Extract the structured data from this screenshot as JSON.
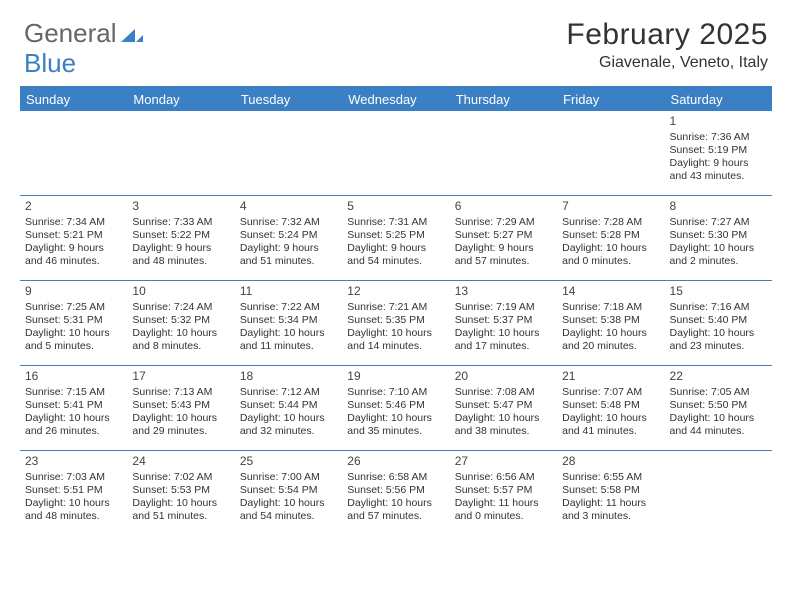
{
  "logo": {
    "text1": "General",
    "text2": "Blue",
    "color1": "#666666",
    "color2": "#3b7fc4"
  },
  "title": "February 2025",
  "location": "Giavenale, Veneto, Italy",
  "theme": {
    "header_bg": "#3b7fc4",
    "header_text": "#ffffff",
    "row_border": "#3b7fc4",
    "body_text": "#333333",
    "page_bg": "#ffffff"
  },
  "days": [
    "Sunday",
    "Monday",
    "Tuesday",
    "Wednesday",
    "Thursday",
    "Friday",
    "Saturday"
  ],
  "weeks": [
    [
      null,
      null,
      null,
      null,
      null,
      null,
      {
        "n": "1",
        "sr": "7:36 AM",
        "ss": "5:19 PM",
        "dl": "9 hours and 43 minutes."
      }
    ],
    [
      {
        "n": "2",
        "sr": "7:34 AM",
        "ss": "5:21 PM",
        "dl": "9 hours and 46 minutes."
      },
      {
        "n": "3",
        "sr": "7:33 AM",
        "ss": "5:22 PM",
        "dl": "9 hours and 48 minutes."
      },
      {
        "n": "4",
        "sr": "7:32 AM",
        "ss": "5:24 PM",
        "dl": "9 hours and 51 minutes."
      },
      {
        "n": "5",
        "sr": "7:31 AM",
        "ss": "5:25 PM",
        "dl": "9 hours and 54 minutes."
      },
      {
        "n": "6",
        "sr": "7:29 AM",
        "ss": "5:27 PM",
        "dl": "9 hours and 57 minutes."
      },
      {
        "n": "7",
        "sr": "7:28 AM",
        "ss": "5:28 PM",
        "dl": "10 hours and 0 minutes."
      },
      {
        "n": "8",
        "sr": "7:27 AM",
        "ss": "5:30 PM",
        "dl": "10 hours and 2 minutes."
      }
    ],
    [
      {
        "n": "9",
        "sr": "7:25 AM",
        "ss": "5:31 PM",
        "dl": "10 hours and 5 minutes."
      },
      {
        "n": "10",
        "sr": "7:24 AM",
        "ss": "5:32 PM",
        "dl": "10 hours and 8 minutes."
      },
      {
        "n": "11",
        "sr": "7:22 AM",
        "ss": "5:34 PM",
        "dl": "10 hours and 11 minutes."
      },
      {
        "n": "12",
        "sr": "7:21 AM",
        "ss": "5:35 PM",
        "dl": "10 hours and 14 minutes."
      },
      {
        "n": "13",
        "sr": "7:19 AM",
        "ss": "5:37 PM",
        "dl": "10 hours and 17 minutes."
      },
      {
        "n": "14",
        "sr": "7:18 AM",
        "ss": "5:38 PM",
        "dl": "10 hours and 20 minutes."
      },
      {
        "n": "15",
        "sr": "7:16 AM",
        "ss": "5:40 PM",
        "dl": "10 hours and 23 minutes."
      }
    ],
    [
      {
        "n": "16",
        "sr": "7:15 AM",
        "ss": "5:41 PM",
        "dl": "10 hours and 26 minutes."
      },
      {
        "n": "17",
        "sr": "7:13 AM",
        "ss": "5:43 PM",
        "dl": "10 hours and 29 minutes."
      },
      {
        "n": "18",
        "sr": "7:12 AM",
        "ss": "5:44 PM",
        "dl": "10 hours and 32 minutes."
      },
      {
        "n": "19",
        "sr": "7:10 AM",
        "ss": "5:46 PM",
        "dl": "10 hours and 35 minutes."
      },
      {
        "n": "20",
        "sr": "7:08 AM",
        "ss": "5:47 PM",
        "dl": "10 hours and 38 minutes."
      },
      {
        "n": "21",
        "sr": "7:07 AM",
        "ss": "5:48 PM",
        "dl": "10 hours and 41 minutes."
      },
      {
        "n": "22",
        "sr": "7:05 AM",
        "ss": "5:50 PM",
        "dl": "10 hours and 44 minutes."
      }
    ],
    [
      {
        "n": "23",
        "sr": "7:03 AM",
        "ss": "5:51 PM",
        "dl": "10 hours and 48 minutes."
      },
      {
        "n": "24",
        "sr": "7:02 AM",
        "ss": "5:53 PM",
        "dl": "10 hours and 51 minutes."
      },
      {
        "n": "25",
        "sr": "7:00 AM",
        "ss": "5:54 PM",
        "dl": "10 hours and 54 minutes."
      },
      {
        "n": "26",
        "sr": "6:58 AM",
        "ss": "5:56 PM",
        "dl": "10 hours and 57 minutes."
      },
      {
        "n": "27",
        "sr": "6:56 AM",
        "ss": "5:57 PM",
        "dl": "11 hours and 0 minutes."
      },
      {
        "n": "28",
        "sr": "6:55 AM",
        "ss": "5:58 PM",
        "dl": "11 hours and 3 minutes."
      },
      null
    ]
  ],
  "labels": {
    "sunrise": "Sunrise:",
    "sunset": "Sunset:",
    "daylight": "Daylight:"
  }
}
